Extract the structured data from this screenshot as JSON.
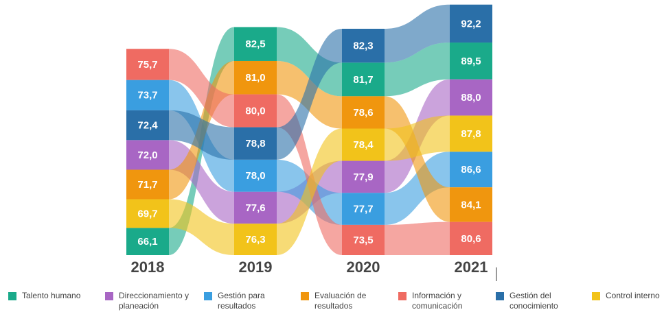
{
  "chart_data": {
    "type": "ribbon",
    "categories": [
      "2018",
      "2019",
      "2020",
      "2021"
    ],
    "series": [
      {
        "name": "Talento humano",
        "color": "#1aaa8a",
        "values": [
          66.1,
          82.5,
          81.7,
          89.5
        ],
        "value_labels": [
          "66,1",
          "82,5",
          "81,7",
          "89,5"
        ]
      },
      {
        "name": "Direccionamiento y planeación",
        "color": "#a866c4",
        "values": [
          72.0,
          77.6,
          77.9,
          88.0
        ],
        "value_labels": [
          "72,0",
          "77,6",
          "77,9",
          "88,0"
        ]
      },
      {
        "name": "Gestión para resultados",
        "color": "#3a9ee0",
        "values": [
          73.7,
          78.0,
          77.7,
          86.6
        ],
        "value_labels": [
          "73,7",
          "78,0",
          "77,7",
          "86,6"
        ]
      },
      {
        "name": "Evaluación de resultados",
        "color": "#f0960e",
        "values": [
          71.7,
          81.0,
          78.6,
          84.1
        ],
        "value_labels": [
          "71,7",
          "81,0",
          "78,6",
          "84,1"
        ]
      },
      {
        "name": "Información y comunicación",
        "color": "#ef6b62",
        "values": [
          75.7,
          80.0,
          73.5,
          80.6
        ],
        "value_labels": [
          "75,7",
          "80,0",
          "73,5",
          "80,6"
        ]
      },
      {
        "name": "Gestión del conocimiento",
        "color": "#2a6fa8",
        "values": [
          72.4,
          78.8,
          82.3,
          92.2
        ],
        "value_labels": [
          "72,4",
          "78,8",
          "82,3",
          "92,2"
        ]
      },
      {
        "name": "Control interno",
        "color": "#f2c31a",
        "values": [
          69.7,
          76.3,
          78.4,
          87.8
        ],
        "value_labels": [
          "69,7",
          "76,3",
          "78,4",
          "87,8"
        ]
      }
    ]
  }
}
